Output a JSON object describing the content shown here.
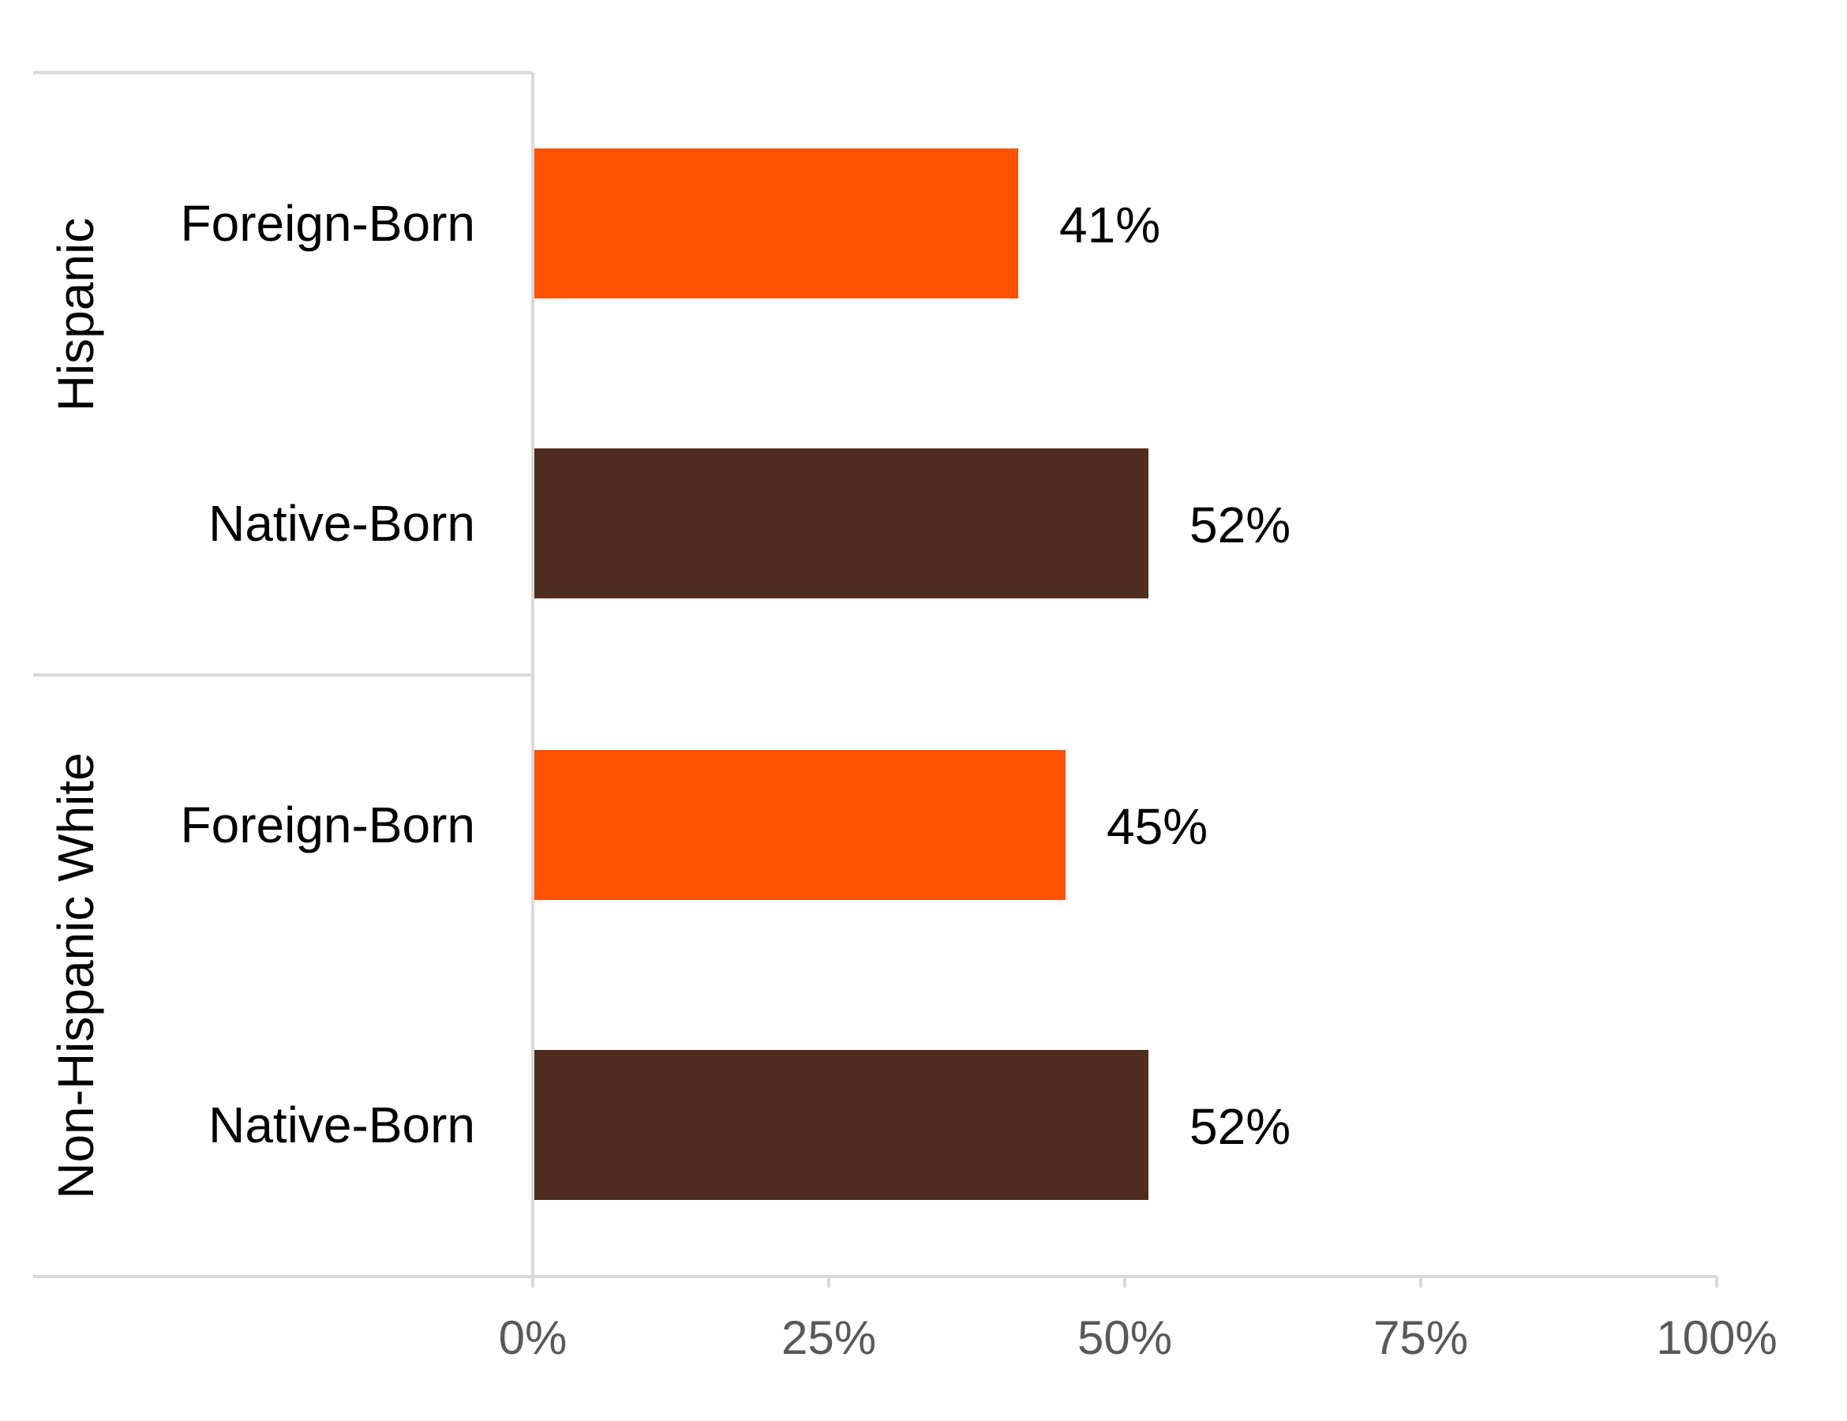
{
  "chart_data": {
    "type": "bar",
    "orientation": "horizontal",
    "groups": [
      {
        "label": "Hispanic",
        "bars": [
          {
            "label": "Foreign-Born",
            "value": 41,
            "value_label": "41%",
            "color": "#FF5200"
          },
          {
            "label": "Native-Born",
            "value": 52,
            "value_label": "52%",
            "color": "#4F2C1F"
          }
        ]
      },
      {
        "label": "Non-Hispanic White",
        "bars": [
          {
            "label": "Foreign-Born",
            "value": 45,
            "value_label": "45%",
            "color": "#FF5200"
          },
          {
            "label": "Native-Born",
            "value": 52,
            "value_label": "52%",
            "color": "#4F2C1F"
          }
        ]
      }
    ],
    "xlim": [
      0,
      100
    ],
    "xticks": [
      {
        "value": 0,
        "label": "0%"
      },
      {
        "value": 25,
        "label": "25%"
      },
      {
        "value": 50,
        "label": "50%"
      },
      {
        "value": 75,
        "label": "75%"
      },
      {
        "value": 100,
        "label": "100%"
      }
    ],
    "title": "",
    "xlabel": "",
    "ylabel": "",
    "grid": false,
    "legend": "none",
    "colors": {
      "foreign_born": "#FF5200",
      "native_born": "#4F2C1F",
      "axis": "#D9D9D9",
      "tick_text": "#595959",
      "text": "#000000"
    }
  }
}
